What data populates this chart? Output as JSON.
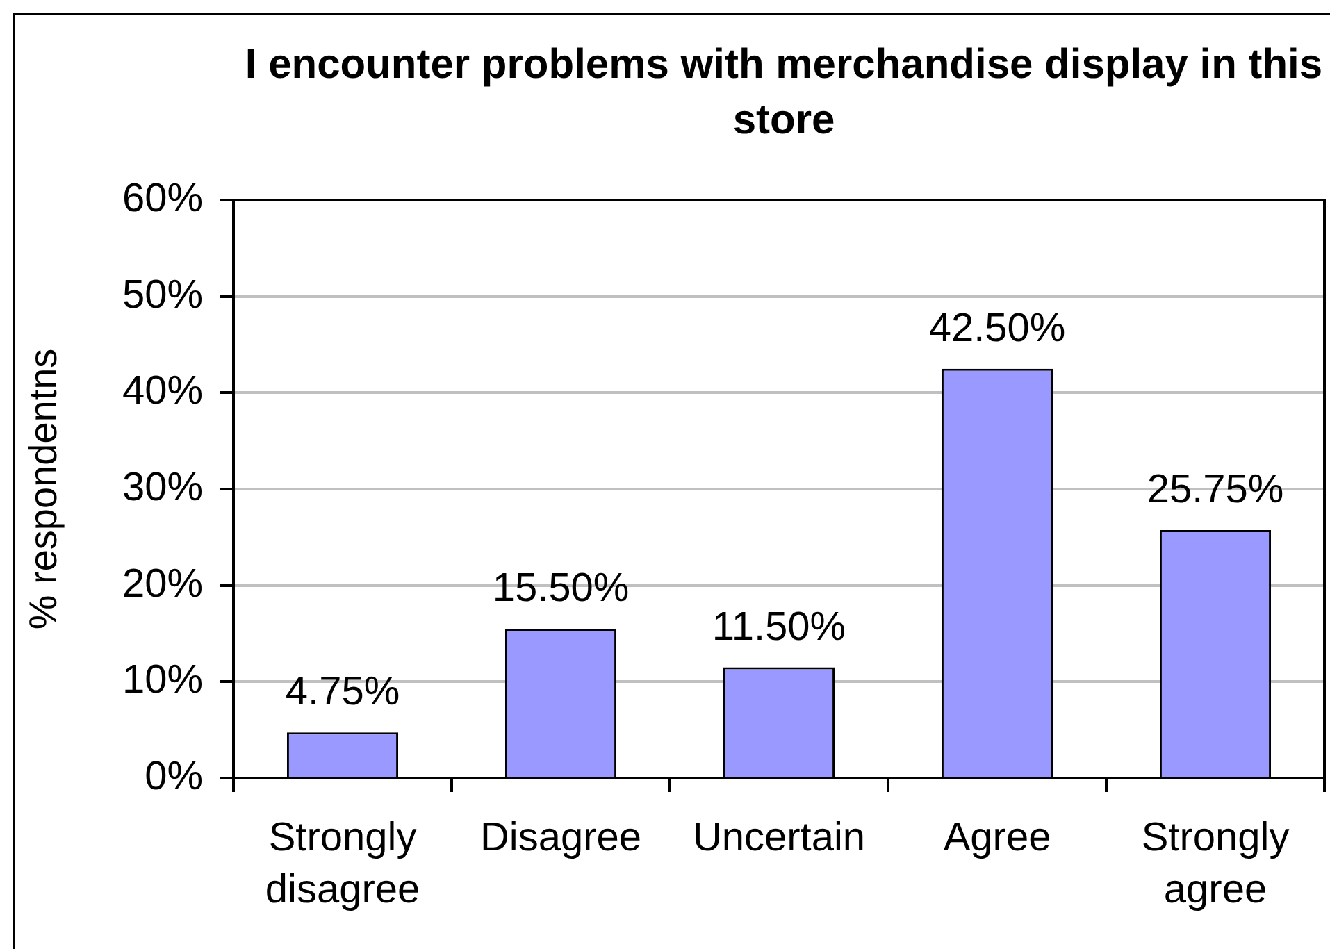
{
  "chart_data": {
    "type": "bar",
    "title": "I encounter problems with merchandise display in this store",
    "ylabel": "% respondentns",
    "categories": [
      "Strongly disagree",
      "Disagree",
      "Uncertain",
      "Agree",
      "Strongly agree"
    ],
    "values": [
      4.75,
      15.5,
      11.5,
      42.5,
      25.75
    ],
    "value_labels": [
      "4.75%",
      "15.50%",
      "11.50%",
      "42.50%",
      "25.75%"
    ],
    "color": "#9999ff",
    "ylim": [
      0,
      60
    ],
    "yticks": [
      {
        "value": 0,
        "label": "0%"
      },
      {
        "value": 10,
        "label": "10%"
      },
      {
        "value": 20,
        "label": "20%"
      },
      {
        "value": 30,
        "label": "30%"
      },
      {
        "value": 40,
        "label": "40%"
      },
      {
        "value": 50,
        "label": "50%"
      },
      {
        "value": 60,
        "label": "60%"
      }
    ],
    "grid": "y",
    "legend": false
  }
}
